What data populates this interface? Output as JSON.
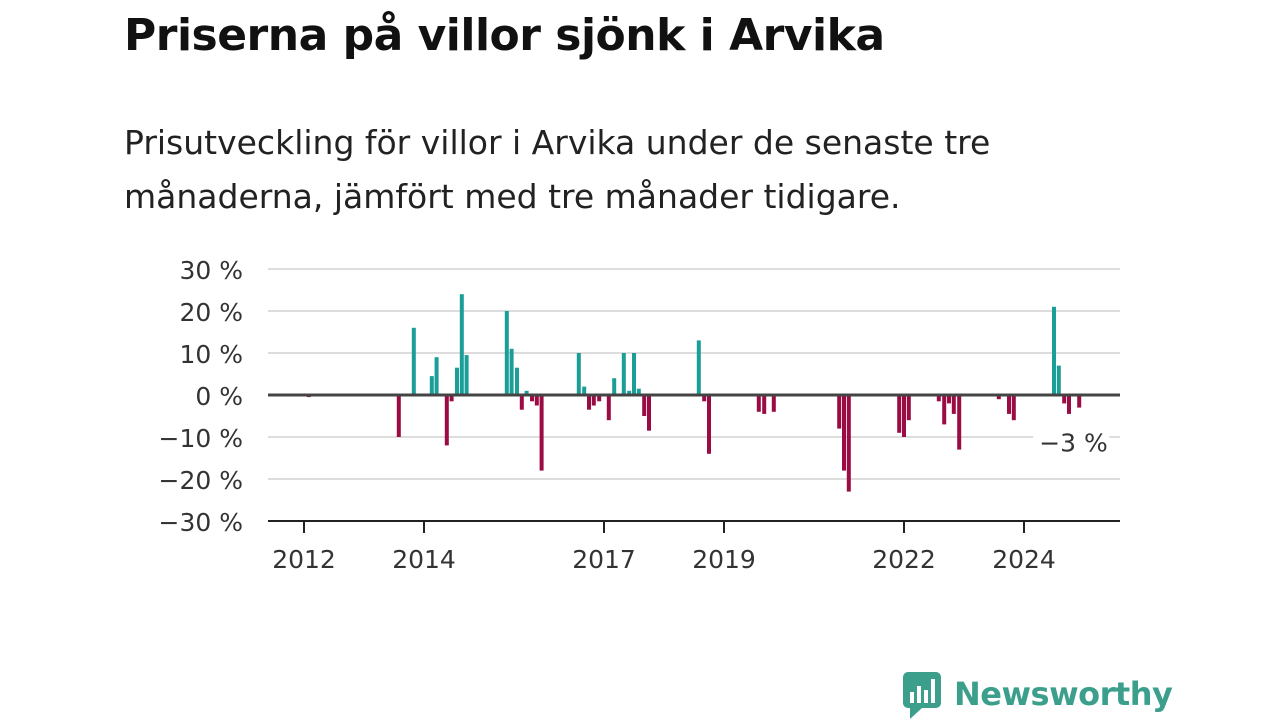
{
  "title": "Priserna på villor sjönk i Arvika",
  "subtitle": "Prisutveckling för villor i Arvika under de senaste tre månaderna, jämfört med tre månader tidigare.",
  "brand": {
    "name": "Newsworthy",
    "icon": "newsworthy-logo-icon",
    "color": "#3c9f8c"
  },
  "chart_data": {
    "type": "bar",
    "title": "",
    "xlabel": "",
    "ylabel": "",
    "x_ticks": [
      "2012",
      "2014",
      "2017",
      "2019",
      "2022",
      "2024"
    ],
    "x_tick_values": [
      2012.0,
      2014.0,
      2017.0,
      2019.0,
      2022.0,
      2024.0
    ],
    "x_range": [
      2011.4,
      2025.6
    ],
    "y_ticks": [
      "30 %",
      "20 %",
      "10 %",
      "0 %",
      "−10 %",
      "−20 %",
      "−30 %"
    ],
    "y_tick_values": [
      30,
      20,
      10,
      0,
      -10,
      -20,
      -30
    ],
    "ylim": [
      -30,
      30
    ],
    "grid": true,
    "colors": {
      "positive": "#1a9e97",
      "negative": "#9b0c44",
      "grid": "#dddddd",
      "zero_line": "#444444"
    },
    "series": [
      {
        "x": [
          2012.08,
          2013.58,
          2013.83,
          2014.13,
          2014.21,
          2014.38,
          2014.46,
          2014.55,
          2014.63,
          2014.71,
          2015.38,
          2015.46,
          2015.55,
          2015.63,
          2015.71,
          2015.8,
          2015.88,
          2015.96,
          2016.58,
          2016.67,
          2016.75,
          2016.83,
          2016.92,
          2017.08,
          2017.17,
          2017.33,
          2017.42,
          2017.5,
          2017.58,
          2017.67,
          2017.75,
          2018.58,
          2018.67,
          2018.75,
          2019.58,
          2019.67,
          2019.83,
          2020.92,
          2021.0,
          2021.08,
          2021.92,
          2022.0,
          2022.08,
          2022.58,
          2022.67,
          2022.75,
          2022.83,
          2022.92,
          2023.58,
          2023.75,
          2023.83,
          2024.5,
          2024.58,
          2024.67,
          2024.75,
          2024.92
        ],
        "values": [
          -0.5,
          -10,
          16,
          4.5,
          9,
          -12,
          -1.5,
          6.5,
          24,
          9.5,
          20,
          11,
          6.5,
          -3.5,
          1,
          -1.5,
          -2.5,
          -18,
          10,
          2,
          -3.5,
          -2.5,
          -1.5,
          -6,
          4,
          10,
          1,
          10,
          1.5,
          -5,
          -8.5,
          13,
          -1.5,
          -14,
          -4,
          -4.5,
          -4,
          -8,
          -18,
          -23,
          -9,
          -10,
          -6,
          -1.5,
          -7,
          -2,
          -4.5,
          -13,
          -1,
          -4.5,
          -6,
          21,
          7,
          -2,
          -4.5,
          -3
        ]
      }
    ],
    "annotation": {
      "text": "−3 %",
      "x": 2024.92,
      "y": -3
    }
  }
}
